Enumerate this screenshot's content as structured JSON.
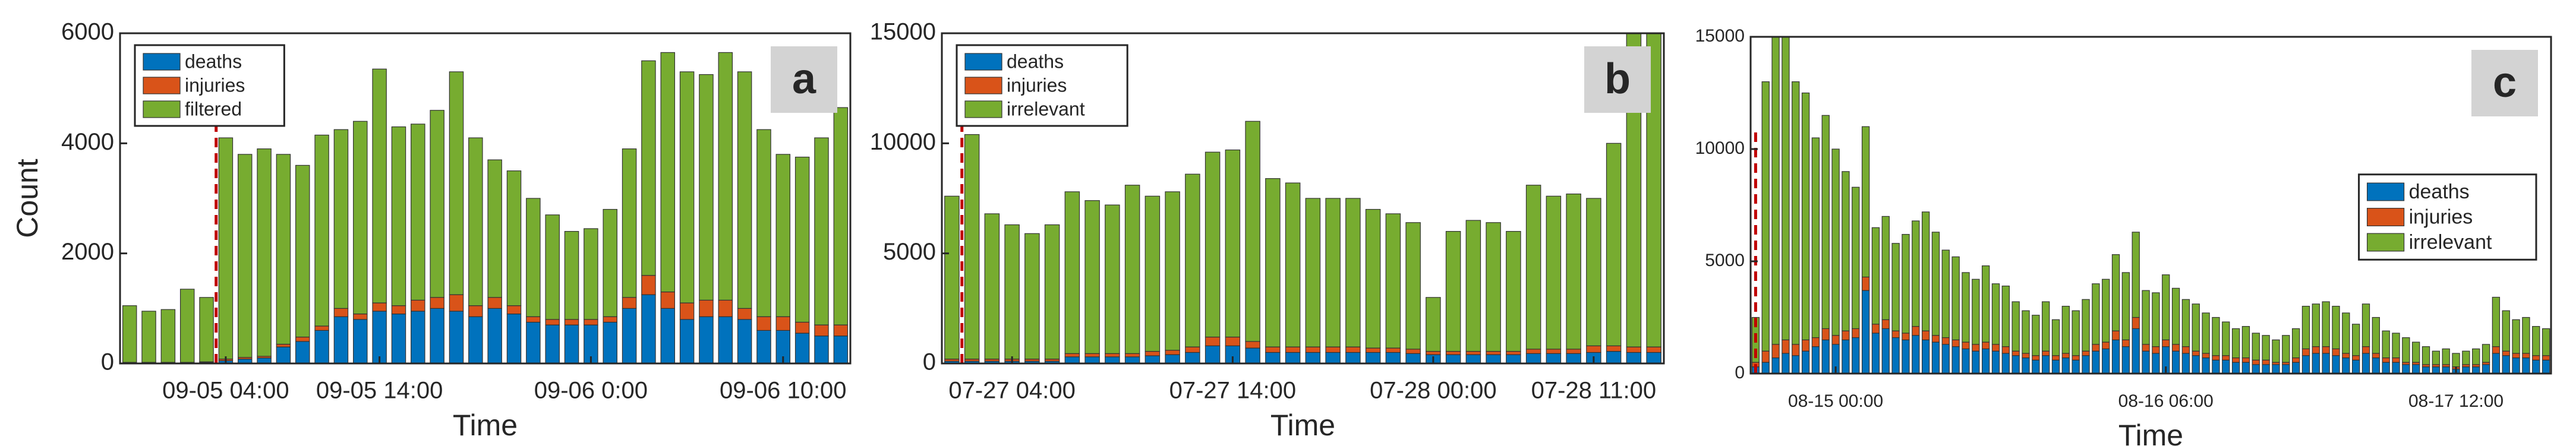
{
  "chart_data": [
    {
      "type": "bar",
      "stacked": true,
      "panel_label": "a",
      "xlabel": "Time",
      "ylabel": "Count",
      "categories": [
        null,
        null,
        null,
        null,
        null,
        "09-05 04:00",
        null,
        null,
        null,
        null,
        null,
        null,
        null,
        "09-05 14:00",
        null,
        null,
        null,
        null,
        null,
        null,
        null,
        null,
        null,
        null,
        "09-06 0:00",
        null,
        null,
        null,
        null,
        null,
        null,
        null,
        null,
        null,
        "09-06 10:00",
        null,
        null,
        null
      ],
      "series": [
        {
          "name": "deaths",
          "color": "#0072bd",
          "values": [
            10,
            10,
            10,
            10,
            20,
            50,
            80,
            100,
            300,
            400,
            600,
            850,
            800,
            950,
            900,
            950,
            1000,
            950,
            850,
            1000,
            900,
            750,
            700,
            700,
            700,
            750,
            1000,
            1250,
            1000,
            800,
            850,
            850,
            800,
            600,
            600,
            550,
            500,
            500
          ]
        },
        {
          "name": "injuries",
          "color": "#d95319",
          "values": [
            10,
            10,
            10,
            10,
            10,
            30,
            30,
            30,
            50,
            80,
            80,
            150,
            100,
            150,
            150,
            200,
            200,
            300,
            200,
            200,
            150,
            100,
            100,
            100,
            100,
            100,
            200,
            350,
            300,
            300,
            300,
            300,
            200,
            250,
            250,
            200,
            200,
            200
          ]
        },
        {
          "name": "filtered",
          "color": "#77ac30",
          "values": [
            1030,
            930,
            960,
            1330,
            1170,
            4020,
            3690,
            3770,
            3450,
            3120,
            3470,
            3250,
            3500,
            4250,
            3250,
            3200,
            3400,
            4050,
            3050,
            2500,
            2450,
            2150,
            1900,
            1600,
            1650,
            1950,
            2700,
            3900,
            4350,
            4200,
            4100,
            4500,
            4300,
            3400,
            2950,
            3000,
            3400,
            3950
          ]
        }
      ],
      "ylim": [
        0,
        6000
      ],
      "yticks": [
        0,
        2000,
        4000,
        6000
      ],
      "legend": "northwest",
      "vline": {
        "x": 4.5,
        "color": "#c00000"
      }
    },
    {
      "type": "bar",
      "stacked": true,
      "panel_label": "b",
      "xlabel": "Time",
      "categories": [
        null,
        null,
        null,
        "07-27 04:00",
        null,
        null,
        null,
        null,
        null,
        null,
        null,
        null,
        null,
        null,
        "07-27 14:00",
        null,
        null,
        null,
        null,
        null,
        null,
        null,
        null,
        null,
        "07-28 00:00",
        null,
        null,
        null,
        null,
        null,
        null,
        null,
        "07-28 11:00",
        null,
        null,
        null
      ],
      "series": [
        {
          "name": "deaths",
          "color": "#0072bd",
          "values": [
            100,
            100,
            100,
            100,
            100,
            100,
            300,
            300,
            300,
            300,
            350,
            400,
            500,
            800,
            800,
            700,
            500,
            500,
            500,
            500,
            500,
            500,
            500,
            450,
            400,
            400,
            400,
            400,
            400,
            450,
            450,
            450,
            500,
            550,
            500,
            500
          ]
        },
        {
          "name": "injuries",
          "color": "#d95319",
          "values": [
            100,
            100,
            100,
            100,
            100,
            100,
            150,
            150,
            150,
            150,
            200,
            200,
            250,
            400,
            400,
            300,
            250,
            250,
            250,
            250,
            250,
            200,
            200,
            200,
            150,
            150,
            150,
            150,
            150,
            200,
            200,
            200,
            300,
            250,
            250,
            250
          ]
        },
        {
          "name": "irrelevant",
          "color": "#77ac30",
          "values": [
            7400,
            10200,
            6600,
            6100,
            5700,
            6100,
            7350,
            6950,
            6750,
            7650,
            7050,
            7200,
            7850,
            8400,
            8500,
            10000,
            7650,
            7450,
            6750,
            6750,
            6750,
            6300,
            6100,
            5750,
            2450,
            5450,
            5950,
            5850,
            5450,
            7450,
            6950,
            7050,
            6700,
            9200,
            14250,
            14250
          ]
        }
      ],
      "ylim": [
        0,
        15000
      ],
      "yticks": [
        0,
        5000,
        10000,
        15000
      ],
      "legend": "northwest",
      "vline": {
        "x": 0.5,
        "color": "#c00000"
      }
    },
    {
      "type": "bar",
      "stacked": true,
      "panel_label": "c",
      "xlabel": "Time",
      "categories": [
        null,
        null,
        null,
        null,
        null,
        null,
        null,
        null,
        "08-15 00:00",
        null,
        null,
        null,
        null,
        null,
        null,
        null,
        null,
        null,
        null,
        null,
        null,
        null,
        null,
        null,
        null,
        null,
        null,
        null,
        null,
        null,
        null,
        null,
        null,
        null,
        null,
        null,
        null,
        null,
        null,
        null,
        null,
        "08-16 06:00",
        null,
        null,
        null,
        null,
        null,
        null,
        null,
        null,
        null,
        null,
        null,
        null,
        null,
        null,
        null,
        null,
        null,
        null,
        null,
        null,
        null,
        null,
        null,
        null,
        null,
        null,
        null,
        null,
        "08-17 12:00",
        null,
        null,
        null,
        null,
        null,
        null,
        null,
        null,
        null
      ],
      "series": [
        {
          "name": "deaths",
          "color": "#0072bd",
          "values": [
            300,
            500,
            700,
            900,
            800,
            1000,
            1200,
            1500,
            1300,
            1500,
            1600,
            3700,
            1800,
            2000,
            1600,
            1500,
            1700,
            1500,
            1400,
            1300,
            1200,
            1100,
            1000,
            1100,
            1000,
            900,
            800,
            700,
            600,
            800,
            600,
            700,
            600,
            800,
            1000,
            1100,
            1500,
            1200,
            2000,
            1000,
            900,
            1200,
            1000,
            900,
            800,
            700,
            600,
            600,
            500,
            500,
            400,
            400,
            400,
            400,
            500,
            800,
            900,
            900,
            800,
            700,
            600,
            900,
            700,
            500,
            500,
            400,
            400,
            300,
            300,
            300,
            200,
            300,
            300,
            400,
            900,
            800,
            700,
            700,
            600,
            600
          ]
        },
        {
          "name": "injuries",
          "color": "#d95319",
          "values": [
            200,
            500,
            600,
            600,
            500,
            500,
            400,
            500,
            400,
            400,
            400,
            600,
            400,
            400,
            300,
            300,
            400,
            400,
            300,
            300,
            300,
            300,
            300,
            300,
            300,
            300,
            200,
            200,
            200,
            200,
            200,
            200,
            200,
            200,
            300,
            300,
            400,
            300,
            500,
            300,
            300,
            300,
            300,
            300,
            200,
            200,
            200,
            200,
            200,
            200,
            200,
            200,
            100,
            100,
            200,
            300,
            300,
            300,
            300,
            200,
            200,
            300,
            200,
            200,
            200,
            100,
            100,
            100,
            100,
            100,
            100,
            100,
            100,
            100,
            300,
            200,
            200,
            200,
            200,
            200
          ]
        },
        {
          "name": "irrelevant",
          "color": "#77ac30",
          "values": [
            2000,
            12000,
            13700,
            13500,
            11700,
            11000,
            8900,
            9500,
            8300,
            7100,
            6300,
            6700,
            4300,
            4600,
            3900,
            4400,
            4700,
            5300,
            4600,
            3900,
            3700,
            3100,
            2900,
            3400,
            2700,
            2700,
            2200,
            1900,
            1800,
            2200,
            1600,
            2100,
            2000,
            2300,
            2700,
            2800,
            3400,
            3000,
            3800,
            2400,
            2400,
            2900,
            2500,
            2100,
            2100,
            1800,
            1700,
            1500,
            1300,
            1400,
            1200,
            1100,
            1000,
            1200,
            1300,
            1900,
            1900,
            2000,
            1900,
            1800,
            1400,
            1900,
            1600,
            1200,
            1100,
            1100,
            900,
            800,
            600,
            700,
            600,
            600,
            700,
            800,
            2200,
            1800,
            1500,
            1600,
            1300,
            1200
          ]
        }
      ],
      "ylim": [
        0,
        15000
      ],
      "yticks": [
        0,
        5000,
        10000,
        15000
      ],
      "legend": "east",
      "vline": {
        "x": 0,
        "color": "#c00000"
      }
    }
  ]
}
